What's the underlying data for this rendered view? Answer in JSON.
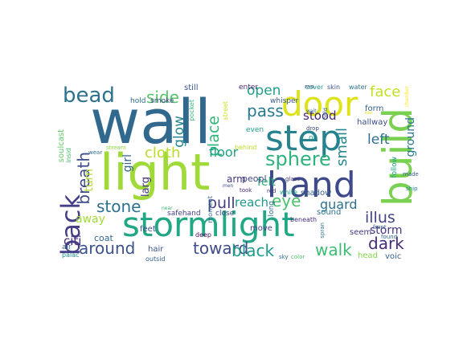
{
  "words": [
    {
      "text": "wall",
      "color": "#31688e"
    },
    {
      "text": "light",
      "color": "#a0da39"
    },
    {
      "text": "step",
      "color": "#26828e"
    },
    {
      "text": "door",
      "color": "#dde318"
    },
    {
      "text": "hand",
      "color": "#3e4a89"
    },
    {
      "text": "stormlight",
      "color": "#22a785"
    },
    {
      "text": "build",
      "color": "#7ad151"
    },
    {
      "text": "bead",
      "color": "#2c728e"
    },
    {
      "text": "back",
      "color": "#433e85"
    },
    {
      "text": "sphere",
      "color": "#2eb37c"
    },
    {
      "text": "side",
      "color": "#52c569"
    },
    {
      "text": "breath",
      "color": "#3e4c8a"
    },
    {
      "text": "cloth",
      "color": "#b8de29"
    },
    {
      "text": "pass",
      "color": "#2a788e"
    },
    {
      "text": "open",
      "color": "#1f9e89"
    },
    {
      "text": "face",
      "color": "#c2df23"
    },
    {
      "text": "stood",
      "color": "#482475"
    },
    {
      "text": "place",
      "color": "#32b67a"
    },
    {
      "text": "glow",
      "color": "#25848e"
    },
    {
      "text": "stone",
      "color": "#2c728e"
    },
    {
      "text": "pull",
      "color": "#443b84"
    },
    {
      "text": "reach",
      "color": "#1f978b"
    },
    {
      "text": "eye",
      "color": "#4ac16d"
    },
    {
      "text": "guard",
      "color": "#2c728e"
    },
    {
      "text": "around",
      "color": "#3b528b"
    },
    {
      "text": "toward",
      "color": "#3e4c8a"
    },
    {
      "text": "black",
      "color": "#1e9b8a"
    },
    {
      "text": "walk",
      "color": "#3dbc74"
    },
    {
      "text": "dark",
      "color": "#472c7a"
    },
    {
      "text": "illus",
      "color": "#414487"
    },
    {
      "text": "storm",
      "color": "#46337f"
    },
    {
      "text": "small",
      "color": "#23888e"
    },
    {
      "text": "left",
      "color": "#2d708e"
    },
    {
      "text": "ground",
      "color": "#2a768e"
    },
    {
      "text": "felt",
      "color": "#2fb47c"
    },
    {
      "text": "turn",
      "color": "#b5de2b"
    },
    {
      "text": "girl",
      "color": "#33628d"
    },
    {
      "text": "larg",
      "color": "#46327e"
    },
    {
      "text": "floor",
      "color": "#1fa187"
    },
    {
      "text": "citi",
      "color": "#472d7b"
    },
    {
      "text": "away",
      "color": "#a2da37"
    },
    {
      "text": "arm",
      "color": "#453581"
    },
    {
      "text": "peopl",
      "color": "#3f4889"
    },
    {
      "text": "behind",
      "color": "#bddf26"
    },
    {
      "text": "even",
      "color": "#1f9f88"
    },
    {
      "text": "street",
      "color": "#cae11f"
    },
    {
      "text": "pocket",
      "color": "#35b779"
    },
    {
      "text": "enter",
      "color": "#482677"
    },
    {
      "text": "still",
      "color": "#3b528b"
    },
    {
      "text": "smoke",
      "color": "#414487"
    },
    {
      "text": "hold",
      "color": "#2d708e"
    },
    {
      "text": "whisper",
      "color": "#38598c"
    },
    {
      "text": "ran",
      "color": "#3e4989"
    },
    {
      "text": "cover",
      "color": "#1f968b"
    },
    {
      "text": "skin",
      "color": "#3b528b"
    },
    {
      "text": "water",
      "color": "#2d708e"
    },
    {
      "text": "held",
      "color": "#2e6e8e"
    },
    {
      "text": "form",
      "color": "#34618d"
    },
    {
      "text": "hallway",
      "color": "#3c4f8a"
    },
    {
      "text": "tow",
      "color": "#e5e419"
    },
    {
      "text": "chamber",
      "color": "#fde725"
    },
    {
      "text": "shadow",
      "color": "#355e8d"
    },
    {
      "text": "white",
      "color": "#21a685"
    },
    {
      "text": "red",
      "color": "#46327e"
    },
    {
      "text": "took",
      "color": "#472a7a"
    },
    {
      "text": "men",
      "color": "#3c508b"
    },
    {
      "text": "moment",
      "color": "#31688e"
    },
    {
      "text": "safehand",
      "color": "#433e85"
    },
    {
      "text": "close",
      "color": "#3e4a89"
    },
    {
      "text": "deep",
      "color": "#46085c"
    },
    {
      "text": "move",
      "color": "#443983"
    },
    {
      "text": "long",
      "color": "#2f6b8e"
    },
    {
      "text": "beneath",
      "color": "#472d7b"
    },
    {
      "text": "sound",
      "color": "#2c738e"
    },
    {
      "text": "spran",
      "color": "#2a768e"
    },
    {
      "text": "seem",
      "color": "#453781"
    },
    {
      "text": "found",
      "color": "#31688e"
    },
    {
      "text": "front",
      "color": "#355f8d"
    },
    {
      "text": "head",
      "color": "#84d44b"
    },
    {
      "text": "voic",
      "color": "#34618d"
    },
    {
      "text": "sky",
      "color": "#306a8e"
    },
    {
      "text": "color",
      "color": "#4ec36b"
    },
    {
      "text": "hair",
      "color": "#3b528b"
    },
    {
      "text": "outsid",
      "color": "#355e8d"
    },
    {
      "text": "palac",
      "color": "#21918c"
    },
    {
      "text": "air",
      "color": "#33638d"
    },
    {
      "text": "coat",
      "color": "#31688e"
    },
    {
      "text": "feet",
      "color": "#3e4c8a"
    },
    {
      "text": "wear",
      "color": "#2e6f8e"
    },
    {
      "text": "stream",
      "color": "#8fd744"
    },
    {
      "text": "near",
      "color": "#35b779"
    },
    {
      "text": "soulcast",
      "color": "#5ec962"
    },
    {
      "text": "insid",
      "color": "#48c16e"
    },
    {
      "text": "ship",
      "color": "#25838e"
    },
    {
      "text": "made",
      "color": "#355f8d"
    },
    {
      "text": "follow",
      "color": "#1fa088"
    },
    {
      "text": "glass",
      "color": "#46337f"
    },
    {
      "text": "wait",
      "color": "#31688e"
    },
    {
      "text": "drop",
      "color": "#3e4a89"
    },
    {
      "text": "ol",
      "color": "#1fa187"
    }
  ]
}
